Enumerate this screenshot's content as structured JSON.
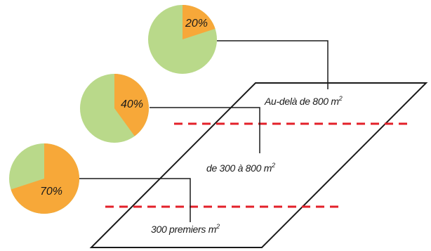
{
  "colors": {
    "share": "#F7A839",
    "remainder": "#B9D98A",
    "divider": "#E3202A",
    "outline": "#1a1a1a"
  },
  "zones": [
    {
      "label": "Au-delà de 800 m",
      "unit_exponent": "2",
      "share_percent": 20,
      "share_label": "20%"
    },
    {
      "label": "de 300 à 800 m",
      "unit_exponent": "2",
      "share_percent": 40,
      "share_label": "40%"
    },
    {
      "label": "300 premiers m",
      "unit_exponent": "2",
      "share_percent": 70,
      "share_label": "70%"
    }
  ]
}
